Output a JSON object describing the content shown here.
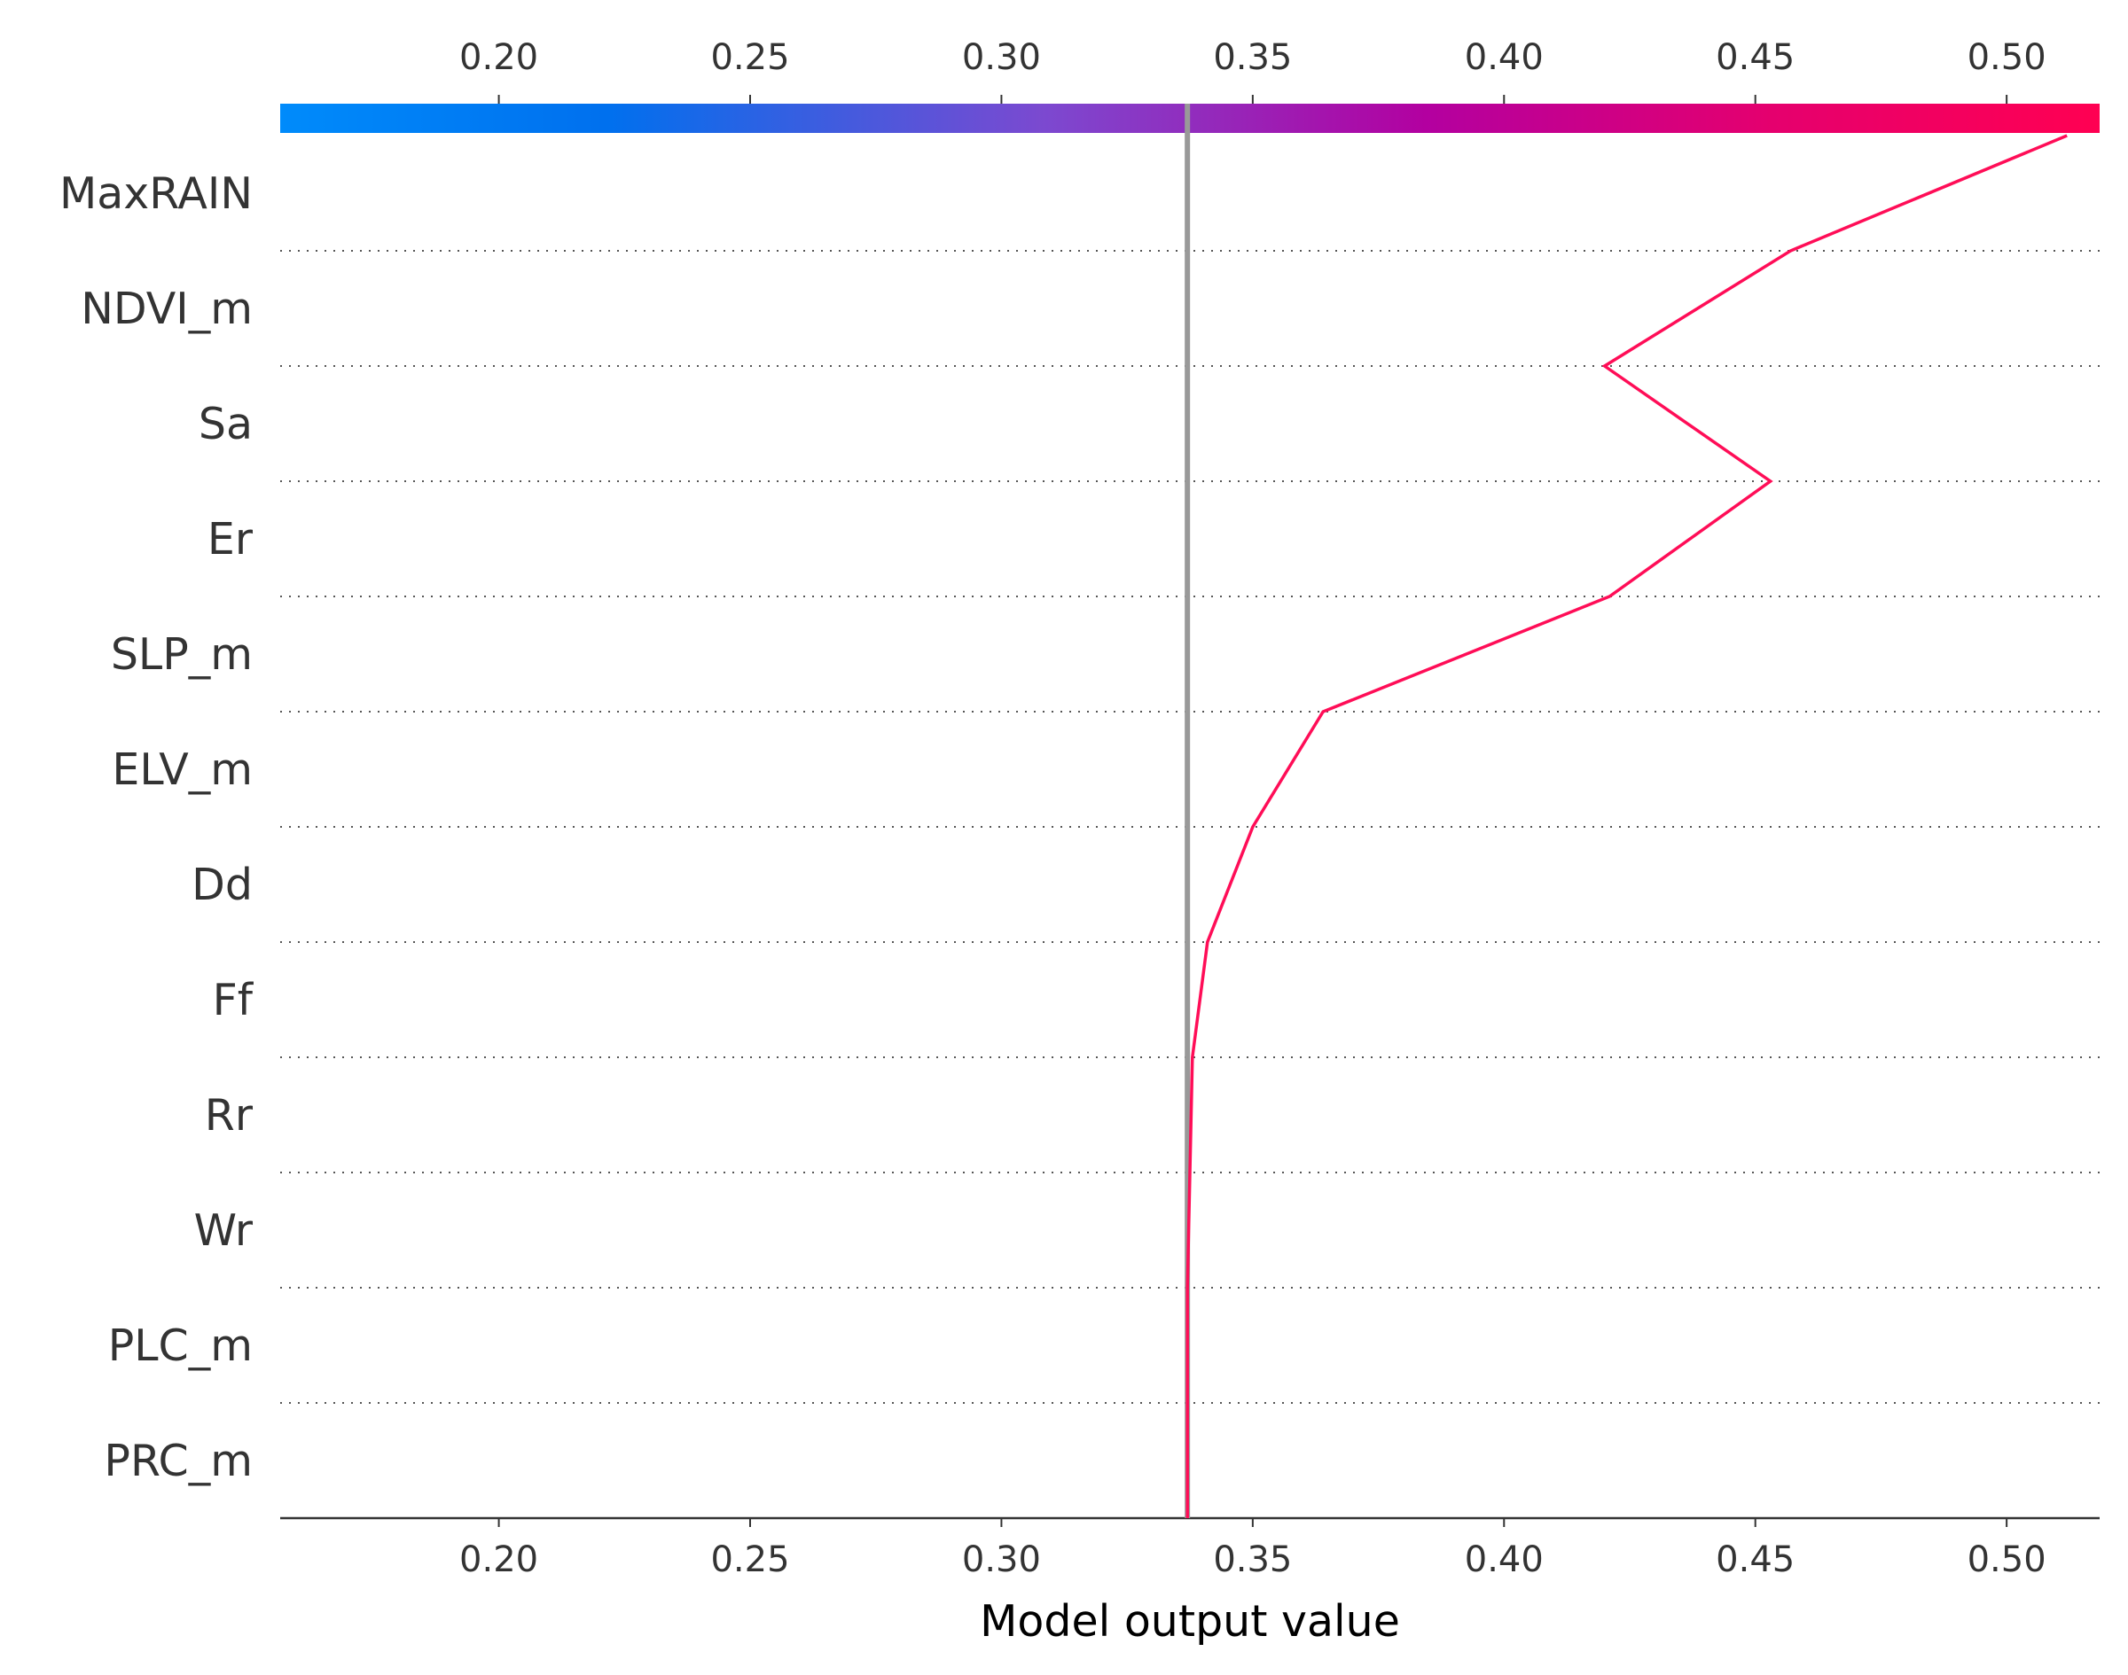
{
  "chart_data": {
    "type": "line",
    "subtype": "shap-decision-plot",
    "xlabel": "Model output value",
    "xlim": [
      0.1565,
      0.5185
    ],
    "xticks": [
      0.2,
      0.25,
      0.3,
      0.35,
      0.4,
      0.45,
      0.5
    ],
    "xtick_labels": [
      "0.20",
      "0.25",
      "0.30",
      "0.35",
      "0.40",
      "0.45",
      "0.50"
    ],
    "base_value": 0.337,
    "features": [
      "MaxRAIN",
      "NDVI_m",
      "Sa",
      "Er",
      "SLP_m",
      "ELV_m",
      "Dd",
      "Ff",
      "Rr",
      "Wr",
      "PLC_m",
      "PRC_m"
    ],
    "path_values": [
      0.512,
      0.457,
      0.42,
      0.453,
      0.421,
      0.364,
      0.35,
      0.341,
      0.338,
      0.3375,
      0.337,
      0.337,
      0.337
    ],
    "grid": "dotted horizontal separators",
    "colorbar": {
      "colors": [
        "#008bfb",
        "#0070ee",
        "#7c49d0",
        "#b300a0",
        "#e5006e",
        "#ff0052"
      ],
      "stops": [
        0.0,
        0.18,
        0.42,
        0.63,
        0.82,
        1.0
      ]
    },
    "line_color": "#ff0d57",
    "base_line_color": "#999999"
  }
}
